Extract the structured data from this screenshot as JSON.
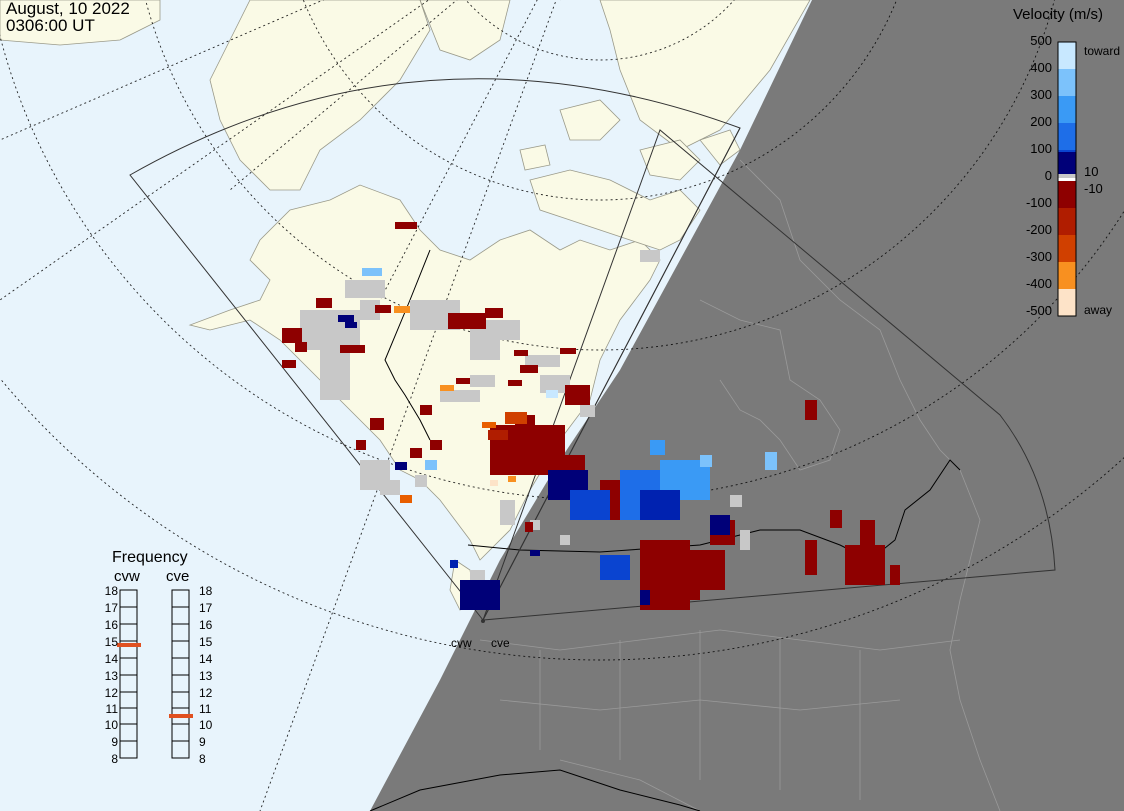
{
  "header": {
    "date": "August, 10 2022",
    "time": "0306:00 UT"
  },
  "colorbar": {
    "title": "Velocity (m/s)",
    "ticks": [
      "500",
      "400",
      "300",
      "200",
      "100",
      "0",
      "-100",
      "-200",
      "-300",
      "-400",
      "-500"
    ],
    "tick_values": [
      500,
      400,
      300,
      200,
      100,
      0,
      -100,
      -200,
      -300,
      -400,
      -500
    ],
    "inner_labels": [
      "10",
      "-10"
    ],
    "inner_values": [
      10,
      -10
    ],
    "toward_label": "toward",
    "away_label": "away",
    "colors": [
      "#fde3c8",
      "#fbc48c",
      "#f89020",
      "#e85e00",
      "#d04000",
      "#b01d00",
      "#8e0000",
      "#ffffff",
      "#000078",
      "#0022b0",
      "#0a44d0",
      "#1e6ee8",
      "#3a9af5",
      "#7cc2fb",
      "#c8e8ff"
    ]
  },
  "frequency": {
    "title": "Frequency",
    "radars": [
      {
        "name": "cvw",
        "value_mhz": 15
      },
      {
        "name": "cve",
        "value_mhz": 11
      }
    ],
    "scale": [
      "18",
      "17",
      "16",
      "15",
      "14",
      "13",
      "12",
      "11",
      "10",
      "9",
      "8"
    ],
    "marker_color": "#e05020"
  },
  "sites": [
    {
      "name": "cvw"
    },
    {
      "name": "cve"
    }
  ],
  "map_colors": {
    "ocean": "#e8f4fc",
    "land": "#fafae6",
    "night": "#7a7a7a",
    "no_scatter": "#c8c8c8"
  }
}
